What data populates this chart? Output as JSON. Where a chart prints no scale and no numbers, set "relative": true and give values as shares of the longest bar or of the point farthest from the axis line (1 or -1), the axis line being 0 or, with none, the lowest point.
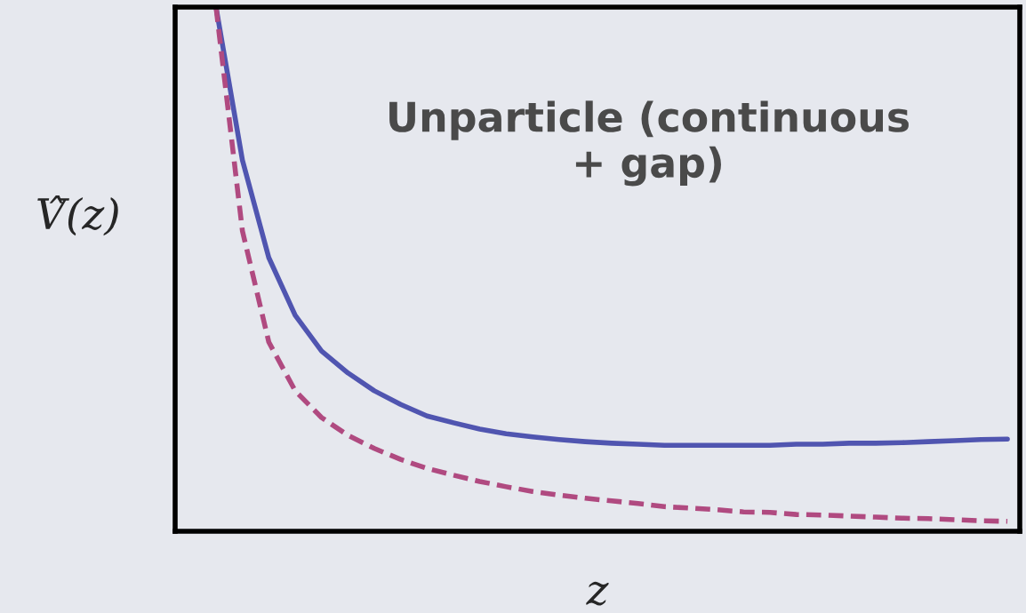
{
  "chart_data": {
    "type": "line",
    "relative": true,
    "xlabel": "z",
    "ylabel": "V̂(z)",
    "annotations": [
      "Unparticle (continuous\n+ gap)"
    ],
    "categories": [
      null,
      null,
      null,
      null,
      null,
      null,
      null,
      null,
      null,
      null,
      null,
      null,
      null,
      null,
      null,
      null,
      null,
      null,
      null,
      null,
      null,
      null,
      null,
      null,
      null,
      null,
      null,
      null,
      null,
      null,
      null
    ],
    "series": [
      {
        "color": "#5055b0",
        "line_style": "solid",
        "values": [
          1.0,
          0.708,
          0.522,
          0.412,
          0.344,
          0.302,
          0.268,
          0.242,
          0.22,
          0.207,
          0.195,
          0.186,
          0.18,
          0.175,
          0.171,
          0.168,
          0.166,
          0.164,
          0.164,
          0.164,
          0.164,
          0.164,
          0.166,
          0.166,
          0.168,
          0.168,
          0.169,
          0.171,
          0.173,
          0.175,
          0.176
        ]
      },
      {
        "color": "#b04a80",
        "line_style": "dashed",
        "values": [
          1.0,
          0.573,
          0.361,
          0.268,
          0.217,
          0.183,
          0.158,
          0.137,
          0.12,
          0.107,
          0.095,
          0.085,
          0.076,
          0.069,
          0.063,
          0.058,
          0.053,
          0.047,
          0.044,
          0.041,
          0.037,
          0.036,
          0.032,
          0.031,
          0.029,
          0.027,
          0.025,
          0.024,
          0.022,
          0.02,
          0.019
        ]
      }
    ]
  }
}
